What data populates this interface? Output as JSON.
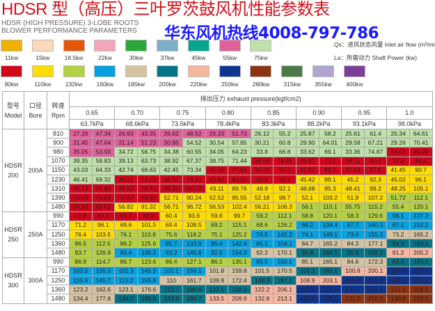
{
  "title": "HDSR 型（高压）三叶罗茨鼓风机性能参数表",
  "subtitle": "HDSR (HIGH PRESSURE) 3-LOBE ROOTS BLOWER PERFORMANCE PARAMETERS",
  "hotline": "华东风机热线4008-797-786",
  "legend": {
    "row1": [
      {
        "label": "11kw",
        "color": "#f0b000"
      },
      {
        "label": "15kw",
        "color": "#fcd9b8"
      },
      {
        "label": "18.5kw",
        "color": "#e8560c"
      },
      {
        "label": "22kw",
        "color": "#f2a7b8"
      },
      {
        "label": "30kw",
        "color": "#2aa83a"
      },
      {
        "label": "37kw",
        "color": "#7bafc8"
      },
      {
        "label": "45kw",
        "color": "#07a58f"
      },
      {
        "label": "55kw",
        "color": "#e0609a"
      },
      {
        "label": "75kw",
        "color": "#bfe0a8"
      }
    ],
    "row2": [
      {
        "label": "90kw",
        "color": "#d0061a"
      },
      {
        "label": "110kw",
        "color": "#ffdc00"
      },
      {
        "label": "132kw",
        "color": "#b5d143"
      },
      {
        "label": "160kw",
        "color": "#06a0de"
      },
      {
        "label": "185kw",
        "color": "#d4c2a2"
      },
      {
        "label": "200kw",
        "color": "#047487"
      },
      {
        "label": "220kw",
        "color": "#f5b7a0"
      },
      {
        "label": "250kw",
        "color": "#0d3590"
      },
      {
        "label": "280kw",
        "color": "#8a3414"
      },
      {
        "label": "315kw",
        "color": "#4a7a48"
      },
      {
        "label": "355kw",
        "color": "#b0a4d0"
      },
      {
        "label": "400kw",
        "color": "#7c3e98"
      }
    ],
    "qs_note": "Qs：进风状态风量 Inlet air flow (m³/min)",
    "la_note": "La：所需动力 Shaft Power (kw)"
  },
  "table": {
    "model_header": [
      "型号",
      "Model"
    ],
    "bore_header": [
      "口径",
      "Bore"
    ],
    "rpm_header": [
      "转速",
      "Rpm"
    ],
    "pressure_header": "排出压力 exhaust pressure(kgf/cm2)",
    "pressures": [
      "0.65",
      "0.70",
      "0.75",
      "0.80",
      "0.85",
      "0.90",
      "0.95",
      "1.0"
    ],
    "kpa": [
      "63.7kPa",
      "68.6kPa",
      "73.5kPa",
      "78.4kPa",
      "83.3kPa",
      "88.2kPa",
      "93.1kPa",
      "98.0kPa"
    ],
    "power_colors": {
      "P": "#e0609a",
      "L": "#bfe0a8",
      "R": "#d0061a",
      "Y": "#ffdc00",
      "G": "#b5d143",
      "B": "#06a0de",
      "T": "#d4c2a2",
      "E": "#047487",
      "S": "#f5b7a0",
      "N": "#0d3590",
      "W": "#8a3414"
    },
    "groups": [
      {
        "model": [
          "HDSR",
          "200"
        ],
        "bore": "200A",
        "rows": [
          {
            "rpm": "810",
            "values": [
              "27.26",
              "47.34",
              "26.93",
              "43.35",
              "26.62",
              "48.52",
              "26.33",
              "51.73",
              "26.12",
              "55.2",
              "25.87",
              "58.2",
              "25.61",
              "61.4",
              "25.34",
              "64.61"
            ],
            "colors": "PPPPPPPPLLLLLLLL"
          },
          {
            "rpm": "900",
            "values": [
              "31.45",
              "47.64",
              "31.14",
              "51.23",
              "30.85",
              "54.52",
              "30.54",
              "57.85",
              "30.21",
              "60.8",
              "29.90",
              "64.01",
              "29.58",
              "67.21",
              "29.26",
              "70.41"
            ],
            "colors": "PPPPPLLLLLLLLLLL"
          },
          {
            "rpm": "980",
            "values": [
              "35.05",
              "53.03",
              "34.72",
              "56.75",
              "34.38",
              "60.55",
              "34.05",
              "64.23",
              "33.8",
              "66.8",
              "33.62",
              "69.1",
              "33.36",
              "74.87",
              "33.01",
              "80.09"
            ],
            "colors": "PPLLLLLLLLLLLLRR"
          },
          {
            "rpm": "1070",
            "values": [
              "39.35",
              "58.83",
              "39.13",
              "63.73",
              "38.92",
              "67.37",
              "38.75",
              "71.44",
              "38.58",
              "74.01",
              "38.37",
              "77.2",
              "38.11",
              "80.5",
              "37.9",
              "84.2"
            ],
            "colors": "LLLLLLLLRRRRRRRR"
          },
          {
            "rpm": "1150",
            "values": [
              "43.03",
              "64.33",
              "42.74",
              "68.63",
              "42.45",
              "73.34",
              "42.25",
              "77.66",
              "42.03",
              "80.1",
              "41.81",
              "84.2",
              "41.63",
              "87.5",
              "41.45",
              "90.7"
            ],
            "colors": "LLLLLLRRRRRRRRYY"
          },
          {
            "rpm": "1230",
            "values": [
              "46.41",
              "69.32",
              "46.21",
              "74.22",
              "46.02",
              "78.81",
              "45.83",
              "83.52",
              "45.6",
              "86.1",
              "45.42",
              "89.1",
              "45.2",
              "92.3",
              "45.02",
              "96.1"
            ],
            "colors": "LLRRRRRRRRYYYYYY"
          },
          {
            "rpm": "1310",
            "values": [
              "49.72",
              "74.81",
              "49.53",
              "79.71",
              "49.32",
              "84.72",
              "49.11",
              "89.76",
              "48.9",
              "92.1",
              "48.68",
              "95.3",
              "48.41",
              "99.2",
              "48.25",
              "105.1"
            ],
            "colors": "RRRRRRYYYYYYYYYY"
          },
          {
            "rpm": "1390",
            "values": [
              "53.03",
              "79.65",
              "52.82",
              "84.91",
              "52.71",
              "90.24",
              "52.52",
              "95.55",
              "52.18",
              "98.7",
              "52.1",
              "103.2",
              "51.9",
              "107.2",
              "51.72",
              "112.1"
            ],
            "colors": "RRRRYYYYYYYYYYGG"
          },
          {
            "rpm": "1480",
            "values": [
              "56.92",
              "85.61",
              "56.82",
              "91.32",
              "56.71",
              "96.72",
              "56.53",
              "102.4",
              "56.21",
              "106.3",
              "56.1",
              "110.1",
              "55.75",
              "115.2",
              "55.4",
              "120.1"
            ],
            "colors": "RRYYYYYYYYGGGGGG"
          }
        ]
      },
      {
        "model": [
          "HDSR",
          "250"
        ],
        "bore": "250A",
        "rows": [
          {
            "rpm": "990",
            "values": [
              "61.8",
              "83.2",
              "61.2",
              "88.9",
              "60.4",
              "93.6",
              "59.8",
              "99.7",
              "59.2",
              "112.1",
              "58.8",
              "120.1",
              "58.3",
              "129.6",
              "58.1",
              "137.2"
            ],
            "colors": "RRRRYYYYGGGGGGBB"
          },
          {
            "rpm": "1170",
            "values": [
              "71.2",
              "96.1",
              "69.6",
              "101.5",
              "69.4",
              "108.5",
              "69.2",
              "115.1",
              "68.6",
              "126.2",
              "68.2",
              "134.4",
              "67.7",
              "140.1",
              "67.1",
              "152.1"
            ],
            "colors": "YYYYYYGGGGBBBBBB"
          },
          {
            "rpm": "1250",
            "values": [
              "76.4",
              "103.5",
              "76.1",
              "110.8",
              "75.6",
              "118.2",
              "75.1",
              "125.2",
              "74.5",
              "142.2",
              "74.1",
              "149.1",
              "73.4",
              "155.2",
              "73.2",
              "165.2"
            ],
            "colors": "YYGGGGGGBBBBBBTT"
          },
          {
            "rpm": "1360",
            "values": [
              "86.5",
              "112.5",
              "86.2",
              "125.6",
              "85.7",
              "133.9",
              "85.4",
              "142.4",
              "85.1",
              "154.1",
              "84.7",
              "165.2",
              "84.3",
              "177.1",
              "84.2",
              "183.1"
            ],
            "colors": "GGGGBBBBBBTTTTEE"
          },
          {
            "rpm": "1480",
            "values": [
              "93.7",
              "126.9",
              "93.4",
              "136.2",
              "93.2",
              "145.6",
              "92.6",
              "154.3",
              "92.2",
              "170.1",
              "91.8",
              "184.1",
              "91.5",
              "192.1",
              "91.2",
              "205.2"
            ],
            "colors": "GGBBBBBBTTEEEESS"
          }
        ]
      },
      {
        "model": [
          "HDSR",
          "300"
        ],
        "bore": "300A",
        "rows": [
          {
            "rpm": "990",
            "values": [
              "86.9",
              "114.7",
              "86.7",
              "123.6",
              "86.4",
              "127.1",
              "86.1",
              "135.1",
              "85.5",
              "150.1",
              "85.1",
              "165.1",
              "84.6",
              "172.3",
              "83.8",
              "183.1"
            ],
            "colors": "GGGGGGGGBBTTTTEE"
          },
          {
            "rpm": "1170",
            "values": [
              "102.5",
              "135.3",
              "102.3",
              "145.3",
              "102.1",
              "150.1",
              "101.8",
              "159.8",
              "101.5",
              "170.5",
              "101.1",
              "182.1",
              "100.8",
              "200.1",
              "100.5",
              "227.2"
            ],
            "colors": "BBBBBBTTTTEESSNN"
          },
          {
            "rpm": "1250",
            "values": [
              "110.4",
              "145.7",
              "110.2",
              "155.8",
              "110",
              "161.7",
              "109.8",
              "172.4",
              "109.3",
              "187.1",
              "108.9",
              "203.1",
              "108.6",
              "220.1",
              "108.3",
              "234.1"
            ],
            "colors": "BBBBTTTTEESSNNNN"
          },
          {
            "rpm": "1360",
            "values": [
              "123.2",
              "162.6",
              "123.1",
              "176.6",
              "122.7",
              "180.4",
              "122.5",
              "192.3",
              "122.2",
              "206.1",
              "122.1",
              "217.6",
              "121.7",
              "232.1",
              "121.5",
              "256.2"
            ],
            "colors": "TTTTEEEESSNNNNWW"
          },
          {
            "rpm": "1480",
            "values": [
              "134.4",
              "177.8",
              "134.2",
              "190.6",
              "133.8",
              "196.7",
              "133.5",
              "209.9",
              "132.8",
              "213.1",
              "132.0",
              "235.1",
              "131.5",
              "250.1",
              "130.8",
              "270.1"
            ],
            "colors": "TTEEEESSSSNNWWWW"
          }
        ]
      }
    ]
  }
}
